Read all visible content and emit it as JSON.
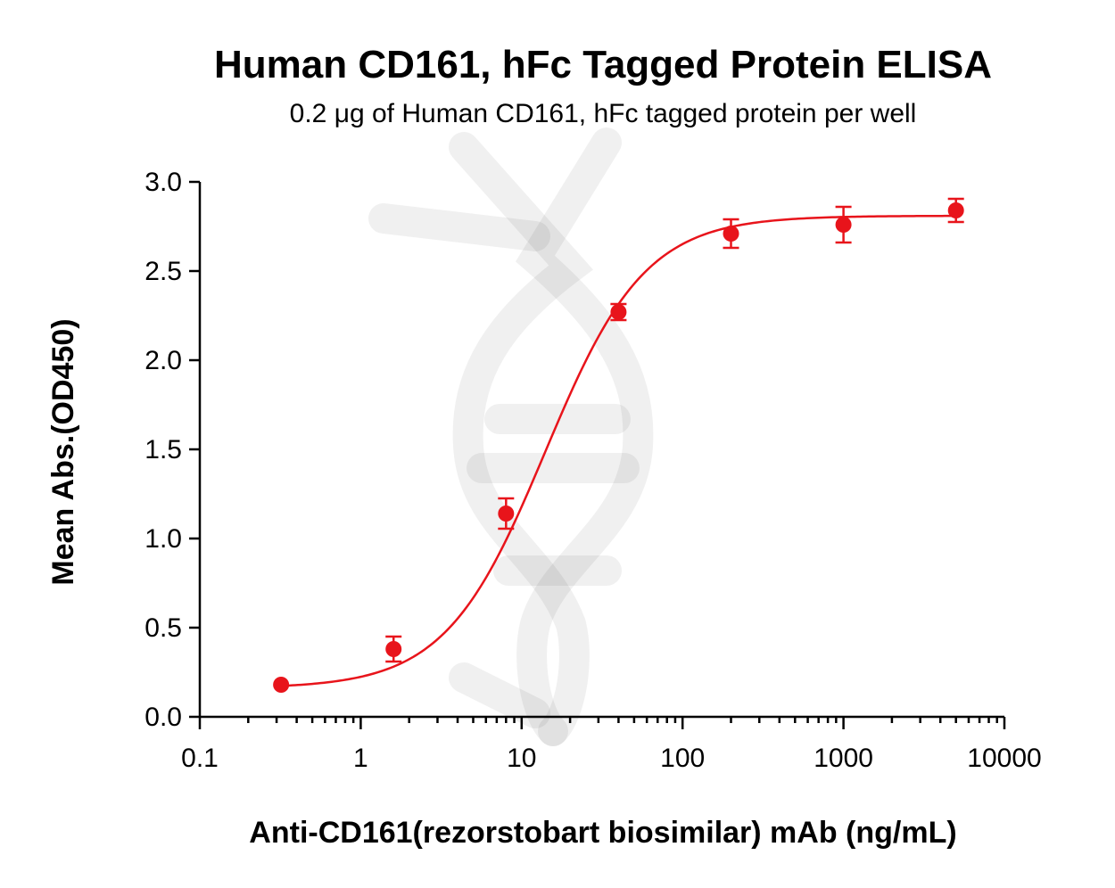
{
  "chart_data": {
    "type": "scatter",
    "title": "Human CD161, hFc Tagged Protein ELISA",
    "subtitle": "0.2 μg of Human CD161, hFc tagged protein per well",
    "xlabel": "Anti-CD161(rezorstobart biosimilar) mAb  (ng/mL)",
    "ylabel": "Mean Abs.(OD450)",
    "xscale": "log",
    "xlim": [
      0.1,
      10000
    ],
    "ylim": [
      0,
      3.0
    ],
    "xticks": [
      0.1,
      1,
      10,
      100,
      1000,
      10000
    ],
    "xtick_labels": [
      "0.1",
      "1",
      "10",
      "100",
      "1000",
      "10000"
    ],
    "yticks": [
      0.0,
      0.5,
      1.0,
      1.5,
      2.0,
      2.5,
      3.0
    ],
    "ytick_labels": [
      "0.0",
      "0.5",
      "1.0",
      "1.5",
      "2.0",
      "2.5",
      "3.0"
    ],
    "grid": false,
    "legend": "none",
    "color": "#e8141b",
    "series": [
      {
        "points": [
          {
            "x": 0.32,
            "y": 0.18,
            "err": 0.0
          },
          {
            "x": 1.6,
            "y": 0.38,
            "err": 0.07
          },
          {
            "x": 8,
            "y": 1.14,
            "err": 0.085
          },
          {
            "x": 40,
            "y": 2.27,
            "err": 0.045
          },
          {
            "x": 200,
            "y": 2.71,
            "err": 0.08
          },
          {
            "x": 1000,
            "y": 2.76,
            "err": 0.1
          },
          {
            "x": 5000,
            "y": 2.84,
            "err": 0.065
          }
        ],
        "fit": {
          "model": "4PL",
          "bottom": 0.16,
          "top": 2.81,
          "ec50": 14,
          "hill": 1.4
        }
      }
    ]
  }
}
